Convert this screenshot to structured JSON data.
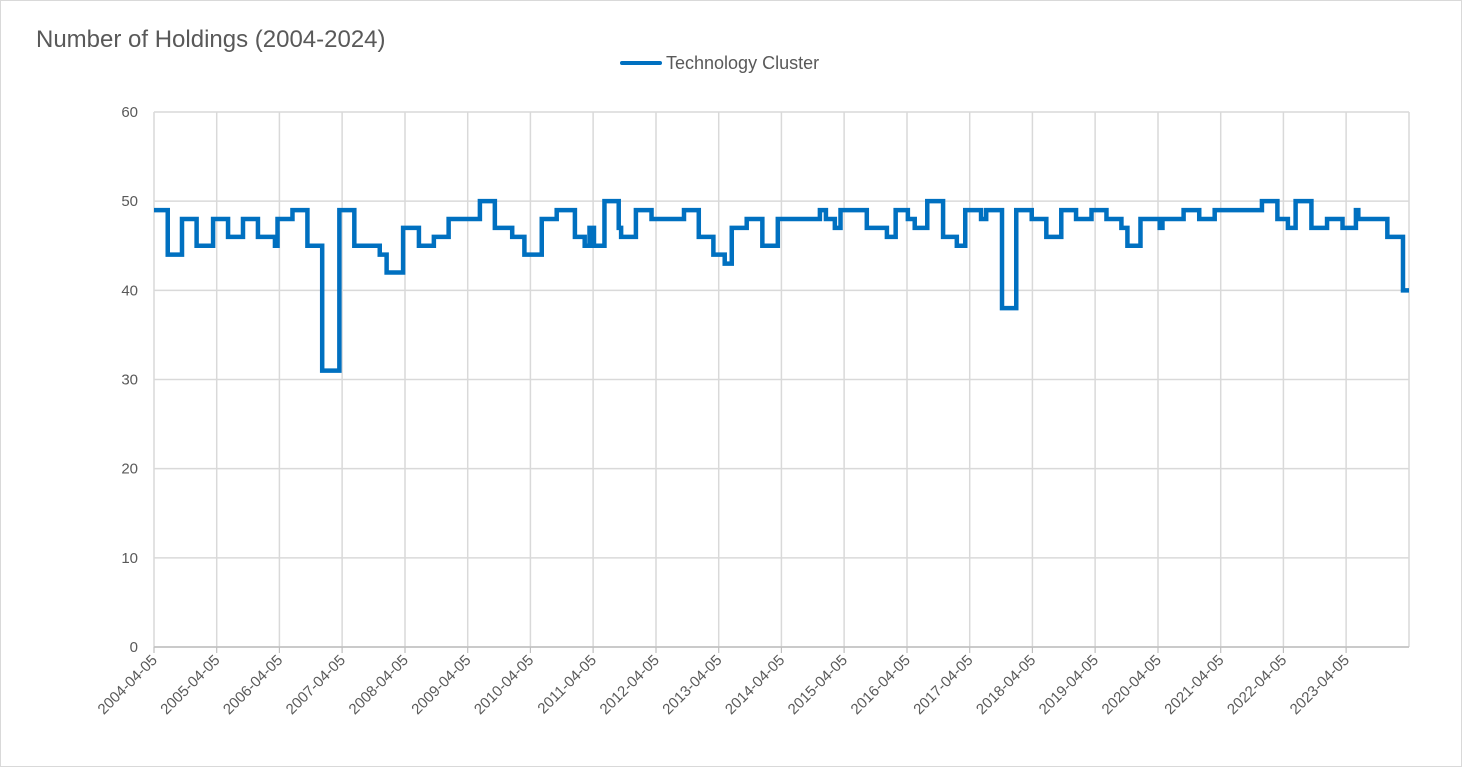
{
  "chart_data": {
    "type": "line",
    "title": "Number of Holdings (2004-2024)",
    "xlabel": "",
    "ylabel": "",
    "ylim": [
      0,
      60
    ],
    "yticks": [
      0,
      10,
      20,
      30,
      40,
      50,
      60
    ],
    "xlim": [
      "2004-04-05",
      "2024-04-05"
    ],
    "xticks": [
      "2004-04-05",
      "2005-04-05",
      "2006-04-05",
      "2007-04-05",
      "2008-04-05",
      "2009-04-05",
      "2010-04-05",
      "2011-04-05",
      "2012-04-05",
      "2013-04-05",
      "2014-04-05",
      "2015-04-05",
      "2016-04-05",
      "2017-04-05",
      "2018-04-05",
      "2019-04-05",
      "2020-04-05",
      "2021-04-05",
      "2022-04-05",
      "2023-04-05"
    ],
    "grid": true,
    "legend": "top-center",
    "step": true,
    "series": [
      {
        "name": "Technology Cluster",
        "color": "#0070c0",
        "points": [
          [
            "2004-04-05",
            49
          ],
          [
            "2004-06-24",
            44
          ],
          [
            "2004-09-15",
            48
          ],
          [
            "2004-12-09",
            45
          ],
          [
            "2005-03-15",
            48
          ],
          [
            "2005-06-10",
            46
          ],
          [
            "2005-09-05",
            48
          ],
          [
            "2005-12-01",
            46
          ],
          [
            "2006-03-10",
            45
          ],
          [
            "2006-03-25",
            48
          ],
          [
            "2006-06-20",
            49
          ],
          [
            "2006-09-15",
            45
          ],
          [
            "2006-12-10",
            31
          ],
          [
            "2007-03-20",
            49
          ],
          [
            "2007-06-15",
            45
          ],
          [
            "2007-11-10",
            44
          ],
          [
            "2007-12-20",
            42
          ],
          [
            "2008-03-25",
            47
          ],
          [
            "2008-06-25",
            45
          ],
          [
            "2008-09-20",
            46
          ],
          [
            "2008-12-15",
            48
          ],
          [
            "2009-06-15",
            50
          ],
          [
            "2009-09-10",
            47
          ],
          [
            "2009-12-20",
            46
          ],
          [
            "2010-03-01",
            44
          ],
          [
            "2010-06-10",
            48
          ],
          [
            "2010-09-05",
            49
          ],
          [
            "2010-12-20",
            46
          ],
          [
            "2011-02-15",
            45
          ],
          [
            "2011-03-15",
            47
          ],
          [
            "2011-04-10",
            45
          ],
          [
            "2011-06-10",
            50
          ],
          [
            "2011-09-01",
            47
          ],
          [
            "2011-09-15",
            46
          ],
          [
            "2011-12-10",
            49
          ],
          [
            "2012-03-10",
            48
          ],
          [
            "2012-09-15",
            49
          ],
          [
            "2012-12-10",
            46
          ],
          [
            "2013-03-05",
            44
          ],
          [
            "2013-05-10",
            43
          ],
          [
            "2013-06-20",
            47
          ],
          [
            "2013-09-15",
            48
          ],
          [
            "2013-12-15",
            45
          ],
          [
            "2014-03-15",
            48
          ],
          [
            "2014-11-15",
            49
          ],
          [
            "2014-12-20",
            48
          ],
          [
            "2015-02-10",
            47
          ],
          [
            "2015-03-15",
            49
          ],
          [
            "2015-08-15",
            47
          ],
          [
            "2015-12-10",
            46
          ],
          [
            "2016-01-30",
            49
          ],
          [
            "2016-04-10",
            48
          ],
          [
            "2016-05-20",
            47
          ],
          [
            "2016-08-01",
            50
          ],
          [
            "2016-11-01",
            46
          ],
          [
            "2017-01-20",
            45
          ],
          [
            "2017-03-10",
            49
          ],
          [
            "2017-06-10",
            48
          ],
          [
            "2017-07-10",
            49
          ],
          [
            "2017-10-10",
            38
          ],
          [
            "2018-01-01",
            49
          ],
          [
            "2018-04-01",
            48
          ],
          [
            "2018-06-25",
            46
          ],
          [
            "2018-09-20",
            49
          ],
          [
            "2018-12-15",
            48
          ],
          [
            "2019-03-15",
            49
          ],
          [
            "2019-06-10",
            48
          ],
          [
            "2019-09-05",
            47
          ],
          [
            "2019-10-10",
            45
          ],
          [
            "2019-12-25",
            48
          ],
          [
            "2020-04-15",
            47
          ],
          [
            "2020-05-01",
            48
          ],
          [
            "2020-09-01",
            49
          ],
          [
            "2020-12-01",
            48
          ],
          [
            "2021-03-01",
            49
          ],
          [
            "2021-12-01",
            50
          ],
          [
            "2022-03-01",
            48
          ],
          [
            "2022-05-01",
            47
          ],
          [
            "2022-06-15",
            50
          ],
          [
            "2022-09-15",
            47
          ],
          [
            "2022-12-15",
            48
          ],
          [
            "2023-03-15",
            47
          ],
          [
            "2023-06-01",
            49
          ],
          [
            "2023-06-15",
            48
          ],
          [
            "2023-12-01",
            46
          ],
          [
            "2024-03-01",
            40
          ],
          [
            "2024-04-05",
            40
          ]
        ]
      }
    ]
  }
}
